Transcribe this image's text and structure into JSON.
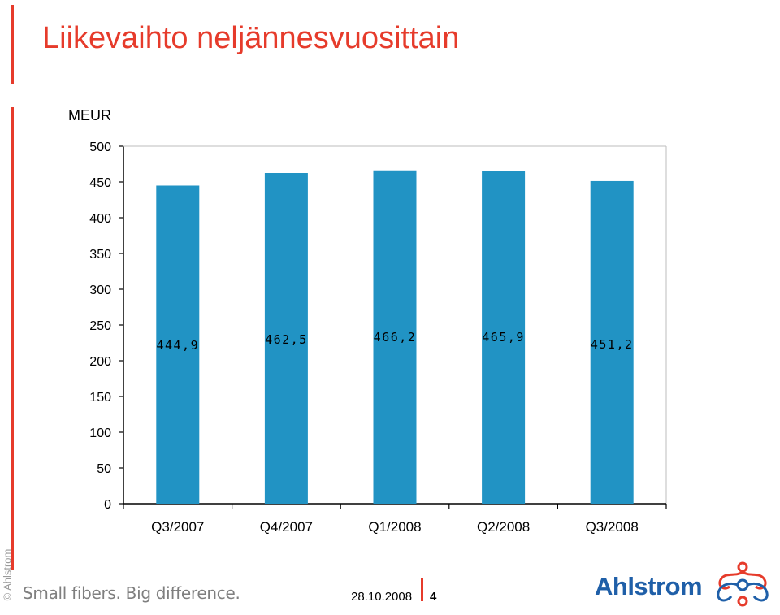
{
  "header": {
    "title": "Liikevaihto neljännesvuosittain",
    "accent_color": "#e63b2b"
  },
  "chart_data": {
    "type": "bar",
    "unit_label": "MEUR",
    "categories": [
      "Q3/2007",
      "Q4/2007",
      "Q1/2008",
      "Q2/2008",
      "Q3/2008"
    ],
    "values": [
      444.9,
      462.5,
      466.2,
      465.9,
      451.2
    ],
    "data_labels": [
      "444,9",
      "462,5",
      "466,2",
      "465,9",
      "451,2"
    ],
    "y_ticks": [
      0,
      50,
      100,
      150,
      200,
      250,
      300,
      350,
      400,
      450,
      500
    ],
    "ylim": [
      0,
      500
    ],
    "grid": false,
    "bar_color": "#2193c4"
  },
  "footer": {
    "copyright": "© Ahlstrom",
    "tagline": "Small fibers. Big difference.",
    "date": "28.10.2008",
    "page_number": "4",
    "brand": "Ahlstrom",
    "brand_color": "#1f5fa8",
    "logo_icon": "ahlstrom-flower-logo"
  }
}
